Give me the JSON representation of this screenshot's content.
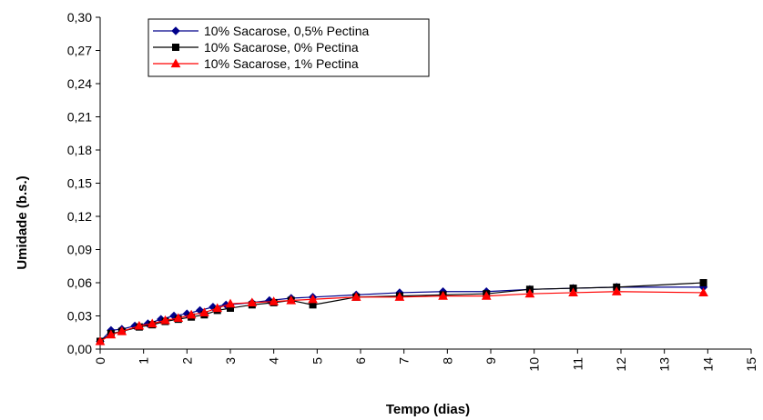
{
  "chart_data": {
    "type": "line",
    "xlabel": "Tempo (dias)",
    "ylabel": "Umidade (b.s.)",
    "xlim": [
      0,
      15
    ],
    "ylim": [
      0,
      0.3
    ],
    "x_ticks": [
      "0",
      "1",
      "2",
      "3",
      "4",
      "5",
      "6",
      "7",
      "8",
      "9",
      "10",
      "11",
      "12",
      "13",
      "14",
      "15"
    ],
    "y_ticks": [
      "0,00",
      "0,03",
      "0,06",
      "0,09",
      "0,12",
      "0,15",
      "0,18",
      "0,21",
      "0,24",
      "0,27",
      "0,30"
    ],
    "grid": false,
    "legend_position": "top-left",
    "series": [
      {
        "name": "10% Sacarose, 0,5% Pectina",
        "color": "#00008B",
        "marker": "diamond",
        "x": [
          0,
          0.25,
          0.5,
          0.8,
          1.1,
          1.4,
          1.7,
          2.0,
          2.3,
          2.6,
          2.9,
          3.5,
          3.9,
          4.4,
          4.9,
          5.9,
          6.9,
          7.9,
          8.9,
          9.9,
          10.9,
          11.9,
          13.9
        ],
        "y": [
          0.007,
          0.017,
          0.018,
          0.021,
          0.023,
          0.027,
          0.03,
          0.032,
          0.035,
          0.038,
          0.04,
          0.042,
          0.044,
          0.046,
          0.047,
          0.049,
          0.051,
          0.052,
          0.052,
          0.054,
          0.055,
          0.056,
          0.056
        ]
      },
      {
        "name": "10% Sacarose, 0% Pectina",
        "color": "#000000",
        "marker": "square",
        "x": [
          0,
          0.25,
          0.5,
          0.9,
          1.2,
          1.5,
          1.8,
          2.1,
          2.4,
          2.7,
          3.0,
          3.5,
          4.0,
          4.4,
          4.9,
          5.9,
          6.9,
          7.9,
          8.9,
          9.9,
          10.9,
          11.9,
          13.9
        ],
        "y": [
          0.007,
          0.014,
          0.016,
          0.02,
          0.022,
          0.025,
          0.027,
          0.029,
          0.031,
          0.035,
          0.037,
          0.04,
          0.042,
          0.044,
          0.04,
          0.047,
          0.048,
          0.049,
          0.05,
          0.054,
          0.055,
          0.056,
          0.06
        ]
      },
      {
        "name": "10% Sacarose, 1% Pectina",
        "color": "#FF0000",
        "marker": "triangle",
        "x": [
          0,
          0.25,
          0.5,
          0.9,
          1.2,
          1.5,
          1.8,
          2.1,
          2.4,
          2.7,
          3.0,
          3.5,
          4.0,
          4.4,
          4.9,
          5.9,
          6.9,
          7.9,
          8.9,
          9.9,
          10.9,
          11.9,
          13.9
        ],
        "y": [
          0.007,
          0.013,
          0.016,
          0.021,
          0.023,
          0.026,
          0.028,
          0.031,
          0.033,
          0.037,
          0.041,
          0.042,
          0.043,
          0.044,
          0.045,
          0.047,
          0.047,
          0.048,
          0.048,
          0.05,
          0.051,
          0.052,
          0.051
        ]
      }
    ]
  }
}
